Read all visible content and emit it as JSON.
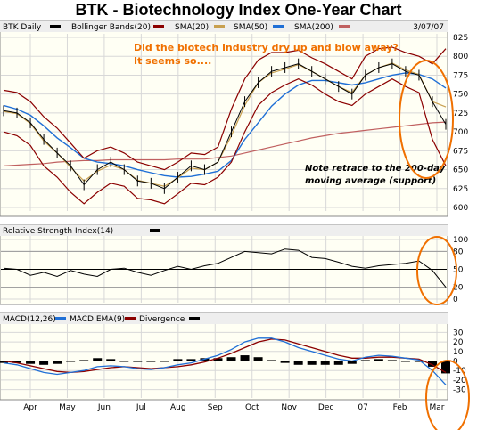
{
  "page": {
    "title": "BTK - Biotechnology Index   One-Year Chart"
  },
  "colors": {
    "price": "#000000",
    "bollinger": "#8b0000",
    "sma20": "#c8a050",
    "sma50": "#1f6fd6",
    "sma200": "#c06060",
    "macd": "#1f6fd6",
    "macd_ema": "#8b0000",
    "annotation": "#f07000",
    "panel_bg": "#fffff4"
  },
  "legend": {
    "price": {
      "label": "BTK Daily",
      "swatch": "black"
    },
    "items": [
      {
        "label": "Bollinger Bands(20)",
        "color": "#8b0000"
      },
      {
        "label": "SMA(20)",
        "color": "#c8a050"
      },
      {
        "label": "SMA(50)",
        "color": "#1f6fd6"
      },
      {
        "label": "SMA(200)",
        "color": "#c06060"
      }
    ],
    "date": "3/07/07"
  },
  "annotations": {
    "headline_line1": "Did the biotech industry dry up and blow away?",
    "headline_line2": "It seems so....",
    "note_line1": "Note retrace to the 200-day",
    "note_line2": "moving average (support)"
  },
  "rsi": {
    "label": "Relative Strength Index(14)",
    "swatch": "black"
  },
  "macd_panel": {
    "items": [
      {
        "label": "MACD(12,26)",
        "color": "#000000"
      },
      {
        "label": "MACD EMA(9)",
        "color": "#1f6fd6"
      },
      {
        "label": "Divergence",
        "color": "#8b0000"
      }
    ],
    "divergence_swatch": "black"
  },
  "chart_data": [
    {
      "type": "line",
      "name": "BTK Daily",
      "x": [
        "Apr",
        "Apr",
        "Apr",
        "May",
        "May",
        "May",
        "Jun",
        "Jun",
        "Jun",
        "Jul",
        "Jul",
        "Jul",
        "Aug",
        "Aug",
        "Aug",
        "Sep",
        "Sep",
        "Sep",
        "Oct",
        "Oct",
        "Oct",
        "Nov",
        "Nov",
        "Nov",
        "Dec",
        "Dec",
        "Dec",
        "07",
        "07",
        "07",
        "Feb",
        "Feb",
        "Feb",
        "Mar"
      ],
      "series": [
        {
          "name": "BTK Daily",
          "values": [
            728,
            725,
            712,
            690,
            672,
            655,
            630,
            650,
            660,
            650,
            635,
            632,
            625,
            640,
            655,
            650,
            660,
            700,
            740,
            765,
            780,
            785,
            790,
            780,
            770,
            760,
            750,
            775,
            785,
            790,
            780,
            775,
            740,
            710
          ]
        },
        {
          "name": "Bollinger Bands(20)",
          "values": [
            755,
            752,
            740,
            720,
            705,
            685,
            665,
            675,
            680,
            672,
            660,
            655,
            650,
            660,
            672,
            670,
            680,
            730,
            770,
            795,
            805,
            805,
            808,
            798,
            790,
            780,
            770,
            800,
            810,
            812,
            805,
            800,
            790,
            810
          ]
        },
        {
          "name": "Bollinger Bands(20)",
          "values": [
            700,
            695,
            682,
            655,
            640,
            620,
            605,
            620,
            632,
            628,
            612,
            610,
            605,
            618,
            632,
            630,
            640,
            660,
            700,
            735,
            752,
            762,
            770,
            762,
            750,
            740,
            735,
            750,
            760,
            770,
            760,
            752,
            690,
            655
          ]
        },
        {
          "name": "SMA(20)",
          "values": [
            727,
            724,
            711,
            688,
            672,
            653,
            635,
            648,
            656,
            650,
            636,
            632,
            628,
            639,
            652,
            650,
            660,
            695,
            735,
            765,
            778,
            783,
            789,
            780,
            770,
            760,
            752,
            775,
            785,
            791,
            782,
            776,
            740,
            733
          ]
        },
        {
          "name": "SMA(50)",
          "values": [
            735,
            730,
            722,
            708,
            692,
            679,
            665,
            660,
            658,
            655,
            650,
            646,
            642,
            640,
            641,
            644,
            648,
            662,
            690,
            712,
            734,
            750,
            762,
            768,
            768,
            765,
            762,
            765,
            770,
            775,
            778,
            776,
            770,
            758
          ]
        },
        {
          "name": "SMA(200)",
          "values": [
            655,
            656,
            657,
            658,
            660,
            661,
            662,
            662,
            663,
            663,
            663,
            663,
            663,
            664,
            664,
            664,
            666,
            668,
            672,
            676,
            680,
            684,
            688,
            692,
            695,
            698,
            700,
            702,
            704,
            706,
            708,
            710,
            712,
            713
          ]
        }
      ],
      "xlabel": "",
      "ylabel": "",
      "ylim": [
        600,
        825
      ],
      "yticks": [
        600,
        625,
        650,
        675,
        700,
        725,
        750,
        775,
        800,
        825
      ],
      "xticks": [
        "Apr",
        "May",
        "Jun",
        "Jul",
        "Aug",
        "Sep",
        "Oct",
        "Nov",
        "Dec",
        "07",
        "Feb",
        "Mar"
      ],
      "grid": true
    },
    {
      "type": "line",
      "name": "Relative Strength Index(14)",
      "series": [
        {
          "name": "Relative Strength Index(14)",
          "values": [
            52,
            50,
            40,
            45,
            38,
            48,
            42,
            38,
            50,
            52,
            45,
            40,
            48,
            55,
            50,
            56,
            60,
            70,
            80,
            78,
            76,
            84,
            82,
            70,
            68,
            62,
            55,
            52,
            56,
            58,
            60,
            64,
            48,
            20
          ]
        }
      ],
      "ylim": [
        0,
        100
      ],
      "yticks": [
        0,
        20,
        50,
        80,
        100
      ],
      "reference_lines": [
        50
      ],
      "grid": true
    },
    {
      "type": "line",
      "name": "MACD(12,26)",
      "series": [
        {
          "name": "MACD(12,26)",
          "values": [
            -2,
            -4,
            -8,
            -12,
            -14,
            -12,
            -10,
            -6,
            -5,
            -6,
            -8,
            -9,
            -7,
            -4,
            -2,
            2,
            6,
            12,
            20,
            24,
            24,
            20,
            14,
            10,
            6,
            2,
            0,
            4,
            6,
            5,
            3,
            1,
            -10,
            -25
          ]
        },
        {
          "name": "MACD EMA(9)",
          "values": [
            0,
            -2,
            -5,
            -8,
            -11,
            -12,
            -11,
            -9,
            -7,
            -6,
            -7,
            -8,
            -7,
            -6,
            -4,
            -1,
            3,
            8,
            14,
            20,
            23,
            22,
            18,
            14,
            10,
            6,
            3,
            3,
            4,
            4,
            3,
            2,
            -4,
            -12
          ]
        },
        {
          "name": "Divergence",
          "values": [
            -2,
            -2,
            -3,
            -4,
            -3,
            0,
            1,
            3,
            2,
            0,
            -1,
            -1,
            0,
            2,
            2,
            3,
            3,
            4,
            6,
            4,
            1,
            -2,
            -4,
            -4,
            -4,
            -4,
            -3,
            1,
            2,
            1,
            0,
            -1,
            -6,
            -13
          ]
        }
      ],
      "ylim": [
        -35,
        35
      ],
      "yticks": [
        -30,
        -20,
        -10,
        0,
        10,
        20,
        30
      ],
      "grid": true
    }
  ]
}
